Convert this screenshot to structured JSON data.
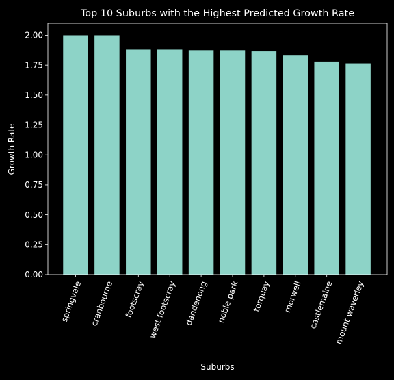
{
  "chart_data": {
    "type": "bar",
    "title": "Top 10 Suburbs with the Highest Predicted Growth Rate",
    "xlabel": "Suburbs",
    "ylabel": "Growth Rate",
    "categories": [
      "springvale",
      "cranbourne",
      "footscray",
      "west footscray",
      "dandenong",
      "noble park",
      "torquay",
      "morwell",
      "castlemaine",
      "mount waverley"
    ],
    "values": [
      2.0,
      2.0,
      1.88,
      1.88,
      1.875,
      1.875,
      1.865,
      1.83,
      1.78,
      1.765
    ],
    "ylim": [
      0,
      2.1
    ],
    "yticks": [
      "0.00",
      "0.25",
      "0.50",
      "0.75",
      "1.00",
      "1.25",
      "1.50",
      "1.75",
      "2.00"
    ],
    "grid": false,
    "colors": {
      "background": "#000000",
      "bar": "#8dd3c7",
      "axis": "#ffffff",
      "text": "#ffffff"
    }
  }
}
